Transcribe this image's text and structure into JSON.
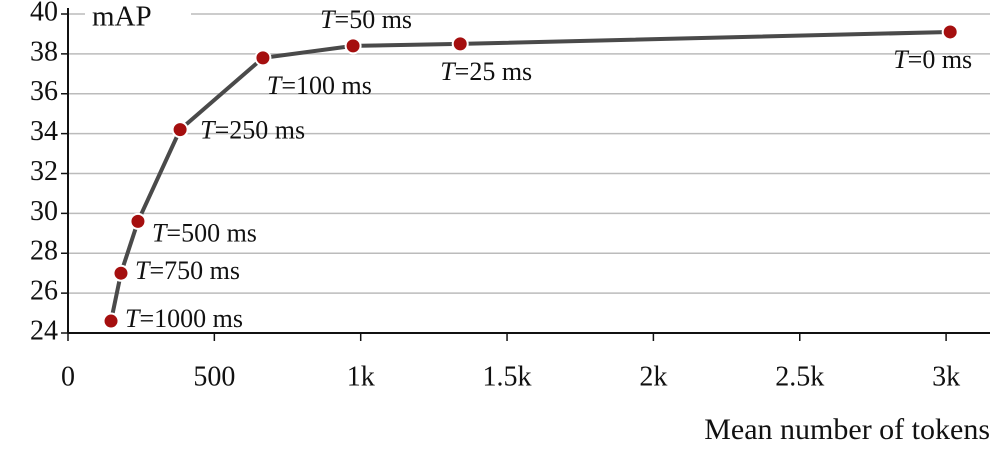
{
  "chart_data": {
    "type": "line",
    "y_label": "mAP",
    "x_label": "Mean number of tokens",
    "x": [
      147,
      181,
      239,
      383,
      666,
      974,
      1340,
      3014
    ],
    "values": [
      24.6,
      27.0,
      29.6,
      34.2,
      37.8,
      38.4,
      38.5,
      39.1
    ],
    "point_labels": [
      "T=1000 ms",
      "T=750 ms",
      "T=500 ms",
      "T=250 ms",
      "T=100 ms",
      "T=50 ms",
      "T=25 ms",
      "T=0 ms"
    ],
    "line_color": "#4a4a4a",
    "marker_color": "#a50f0f",
    "xlim": [
      0,
      3150
    ],
    "xticks": [
      0,
      500,
      {
        "value": 1000,
        "label": "1k"
      },
      {
        "value": 1500,
        "label": "1.5k"
      },
      {
        "value": 2000,
        "label": "2k"
      },
      {
        "value": 2500,
        "label": "2.5k"
      },
      {
        "value": 3000,
        "label": "3k"
      }
    ],
    "ylim": [
      24,
      40
    ],
    "yticks": [
      24,
      26,
      28,
      30,
      32,
      34,
      36,
      38,
      40
    ],
    "grid": true
  }
}
